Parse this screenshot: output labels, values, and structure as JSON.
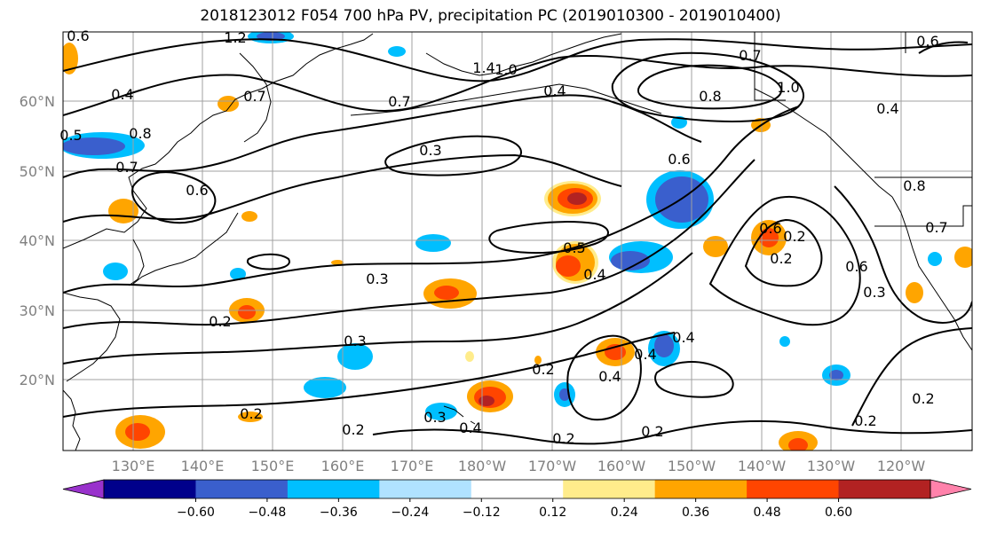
{
  "title": "2018123012 F054 700 hPa PV, precipitation PC (2019010300 - 2019010400)",
  "lat_labels": [
    "60°N",
    "50°N",
    "40°N",
    "30°N",
    "20°N"
  ],
  "lon_labels": [
    "130°E",
    "140°E",
    "150°E",
    "160°E",
    "170°E",
    "180°W",
    "170°W",
    "160°W",
    "150°W",
    "140°W",
    "130°W",
    "120°W"
  ],
  "colorbar": {
    "ticks": [
      "−0.60",
      "−0.48",
      "−0.36",
      "−0.24",
      "−0.12",
      "0.12",
      "0.24",
      "0.36",
      "0.48",
      "0.60"
    ],
    "colors": [
      "#9932CC",
      "#00008B",
      "#3A5FCD",
      "#00BFFF",
      "#B0E2FF",
      "#FFFFFF",
      "#FFEC8B",
      "#FFA500",
      "#FF4500",
      "#B22222",
      "#FF82AB"
    ]
  },
  "contour_labels": [
    "1.2",
    "0.6",
    "0.4",
    "0.5",
    "0.8",
    "0.7",
    "0.7",
    "0.6",
    "1.4",
    "1.0",
    "0.7",
    "0.4",
    "0.7",
    "0.8",
    "1.0",
    "0.4",
    "0.3",
    "0.6",
    "0.8",
    "0.7",
    "0.6",
    "0.2",
    "0.5",
    "0.4",
    "0.3",
    "0.6",
    "0.2",
    "0.3",
    "0.6",
    "0.3",
    "0.4",
    "0.2",
    "0.4",
    "0.2",
    "0.4",
    "0.2",
    "0.2",
    "0.3",
    "0.2",
    "0.4",
    "0.2",
    "0.2",
    "0.2"
  ]
}
